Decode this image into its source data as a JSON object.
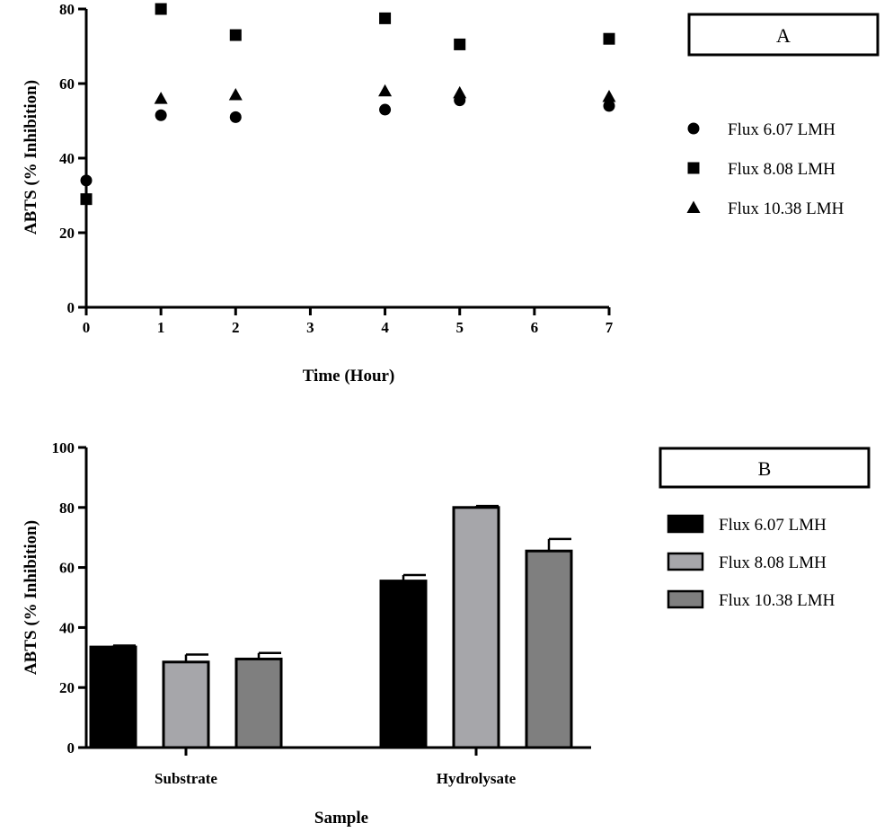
{
  "chart_data": [
    {
      "panel": "A",
      "type": "scatter",
      "xlabel": "Time (Hour)",
      "ylabel": "ABTS (% Inhibition)",
      "xlim": [
        0,
        7
      ],
      "ylim": [
        0,
        80
      ],
      "xticks": [
        0,
        1,
        2,
        3,
        4,
        5,
        6,
        7
      ],
      "yticks": [
        0,
        20,
        40,
        60,
        80
      ],
      "legend_position": "right",
      "series": [
        {
          "name": "Flux 6.07 LMH",
          "marker": "circle",
          "x": [
            0,
            1,
            2,
            4,
            5,
            7
          ],
          "y": [
            34,
            51.5,
            51,
            53,
            55.5,
            54
          ]
        },
        {
          "name": "Flux 8.08 LMH",
          "marker": "square",
          "x": [
            0,
            1,
            2,
            4,
            5,
            7
          ],
          "y": [
            29,
            80,
            73,
            77.5,
            70.5,
            72
          ]
        },
        {
          "name": "Flux 10.38 LMH",
          "marker": "triangle",
          "x": [
            1,
            2,
            4,
            5,
            7
          ],
          "y": [
            56,
            57,
            58,
            57.5,
            56.5
          ]
        }
      ]
    },
    {
      "panel": "B",
      "type": "bar",
      "xlabel": "Sample",
      "ylabel": "ABTS (% Inhibition)",
      "ylim": [
        0,
        100
      ],
      "yticks": [
        0,
        20,
        40,
        60,
        80,
        100
      ],
      "categories": [
        "Substrate",
        "Hydrolysate"
      ],
      "legend_position": "right",
      "series": [
        {
          "name": "Flux 6.07 LMH",
          "color": "#000000",
          "values": [
            33.5,
            55.5
          ],
          "errors": [
            0.5,
            2
          ]
        },
        {
          "name": "Flux 8.08 LMH",
          "color": "#a6a6aa",
          "values": [
            28.5,
            80
          ],
          "errors": [
            2.5,
            0.5
          ]
        },
        {
          "name": "Flux 10.38 LMH",
          "color": "#7f7f7f",
          "values": [
            29.5,
            65.5
          ],
          "errors": [
            2,
            4
          ]
        }
      ]
    }
  ]
}
